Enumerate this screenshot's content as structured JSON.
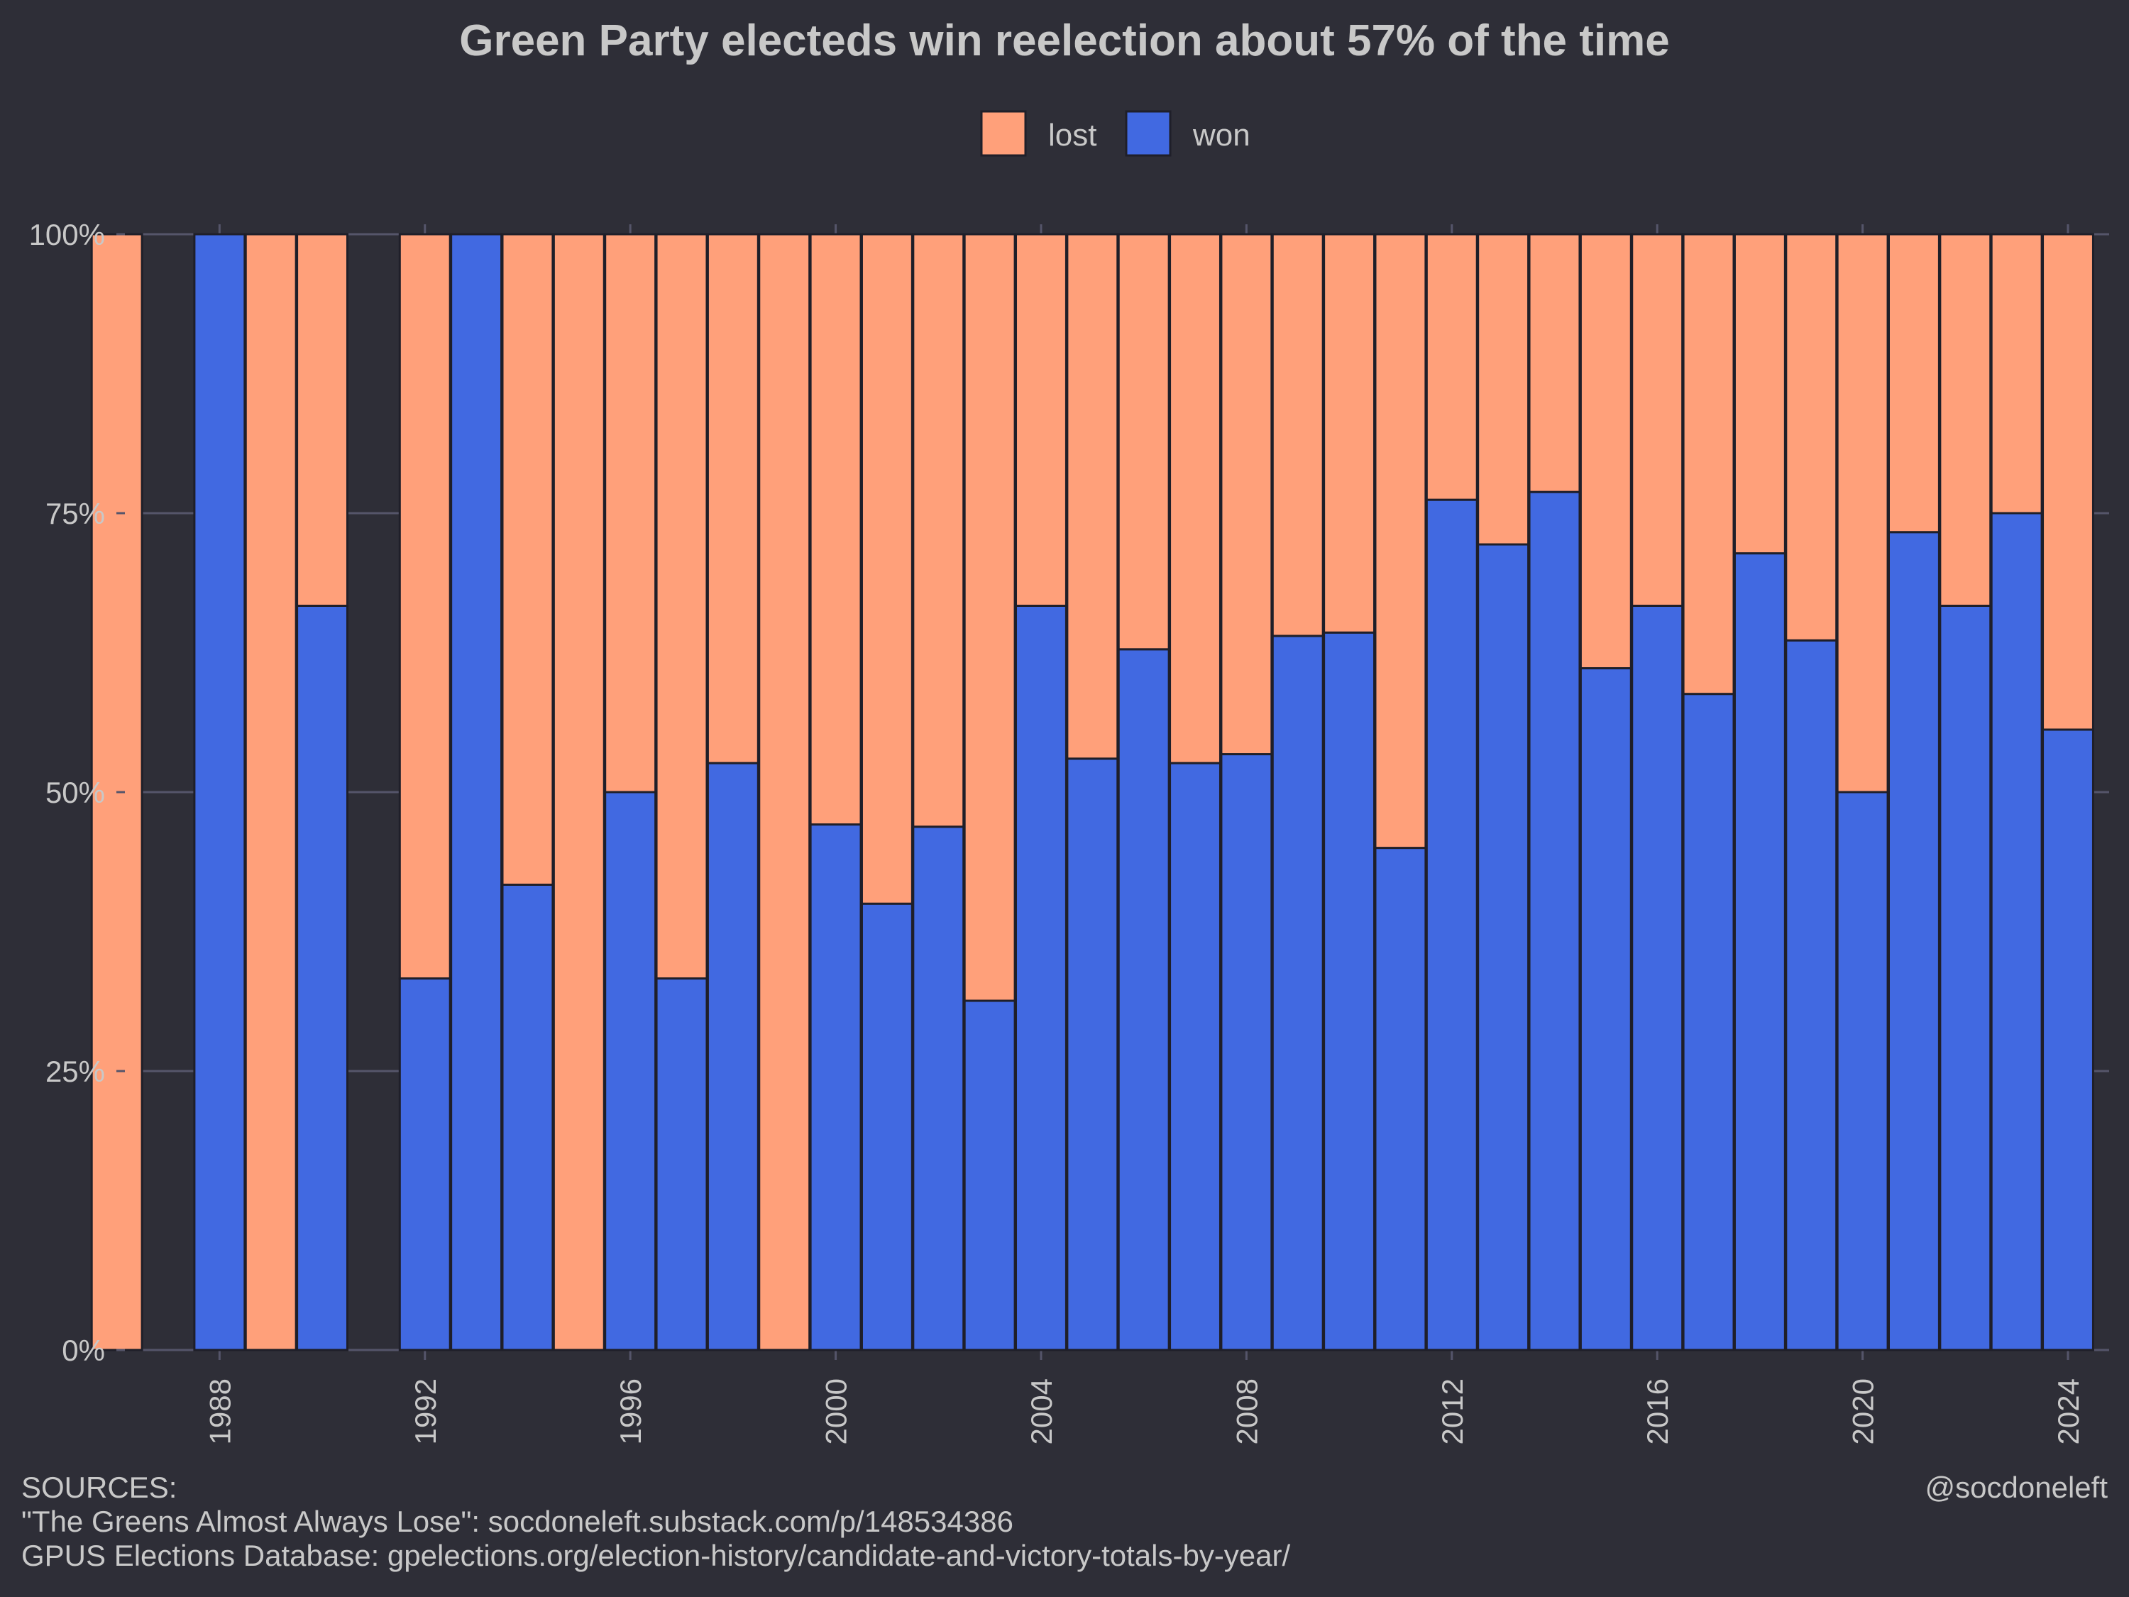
{
  "chart_data": {
    "type": "bar",
    "stacked": true,
    "title": "Green Party electeds win reelection about 57% of the time",
    "legend": {
      "placement": "top-center",
      "entries": [
        {
          "name": "lost",
          "color": "#ffa07a"
        },
        {
          "name": "won",
          "color": "#4169e1"
        }
      ]
    },
    "x_range": [
      1986,
      2024
    ],
    "x_ticks": [
      "1988",
      "1992",
      "1996",
      "2000",
      "2004",
      "2008",
      "2012",
      "2016",
      "2020",
      "2024"
    ],
    "y_ticks": [
      "0%",
      "25%",
      "50%",
      "75%",
      "100%"
    ],
    "ylim": [
      0,
      100
    ],
    "grid": true,
    "x": [
      1986,
      1988,
      1989,
      1990,
      1992,
      1993,
      1994,
      1995,
      1996,
      1997,
      1998,
      1999,
      2000,
      2001,
      2002,
      2003,
      2004,
      2005,
      2006,
      2007,
      2008,
      2009,
      2010,
      2011,
      2012,
      2013,
      2014,
      2015,
      2016,
      2017,
      2018,
      2019,
      2020,
      2021,
      2022,
      2023,
      2024
    ],
    "series": [
      {
        "name": "won",
        "values": [
          0,
          100,
          0,
          66.7,
          33.3,
          100,
          41.7,
          0,
          50,
          33.3,
          52.6,
          0,
          47.1,
          40,
          46.9,
          31.3,
          66.7,
          53,
          62.8,
          52.6,
          53.4,
          64,
          64.3,
          45,
          76.2,
          72.2,
          76.9,
          61.1,
          66.7,
          58.8,
          71.4,
          63.6,
          50,
          73.3,
          66.7,
          75,
          55.6
        ]
      },
      {
        "name": "lost",
        "values": [
          100,
          0,
          100,
          33.3,
          66.7,
          0,
          58.3,
          100,
          50,
          66.7,
          47.4,
          100,
          52.9,
          60,
          53.1,
          68.7,
          33.3,
          47,
          37.2,
          47.4,
          46.6,
          36,
          35.7,
          55,
          23.8,
          27.8,
          23.1,
          38.9,
          33.3,
          41.2,
          28.6,
          36.4,
          50,
          26.7,
          33.3,
          25,
          44.4
        ]
      }
    ]
  },
  "footer": {
    "sources_heading": "SOURCES:",
    "source_1": "\"The Greens Almost Always Lose\": socdoneleft.substack.com/p/148534386",
    "source_2": "GPUS Elections Database: gpelections.org/election-history/candidate-and-victory-totals-by-year/",
    "credit": "@socdoneleft"
  }
}
